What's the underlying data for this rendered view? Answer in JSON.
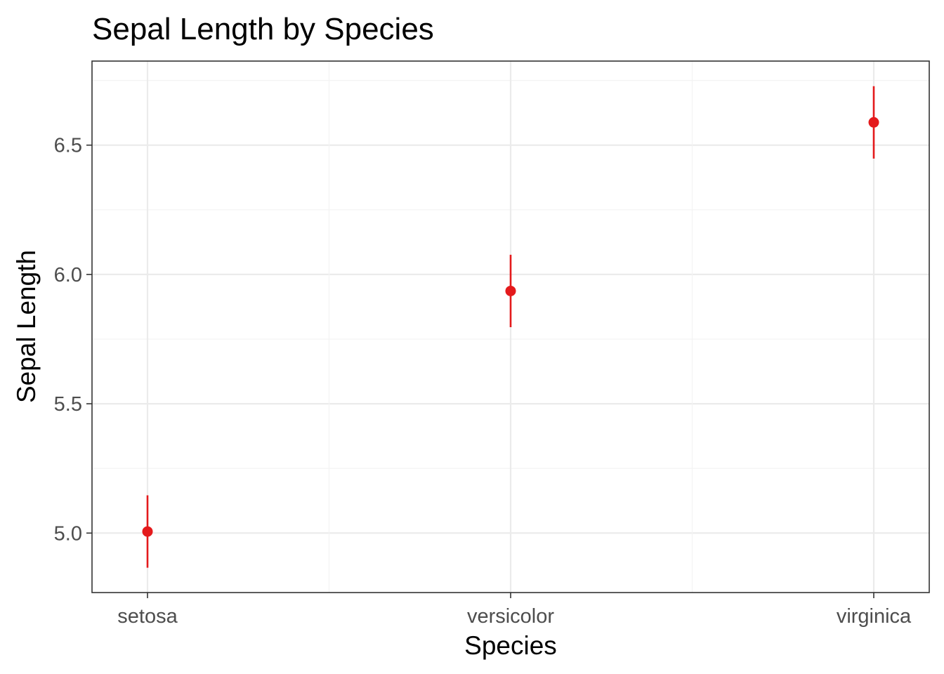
{
  "chart_data": {
    "type": "scatter",
    "title": "Sepal Length by Species",
    "xlabel": "Species",
    "ylabel": "Sepal Length",
    "categories": [
      "setosa",
      "versicolor",
      "virginica"
    ],
    "series": [
      {
        "values": [
          5.006,
          5.936,
          6.588
        ],
        "lower": [
          4.866,
          5.796,
          6.448
        ],
        "upper": [
          5.146,
          6.076,
          6.728
        ]
      }
    ],
    "ylim": [
      4.77,
      6.825
    ],
    "yticks": [
      5.0,
      5.5,
      6.0,
      6.5
    ],
    "ytick_labels": [
      "5.0",
      "5.5",
      "6.0",
      "6.5"
    ],
    "grid": true,
    "legend": "none",
    "point_color": "#e41a1c"
  }
}
